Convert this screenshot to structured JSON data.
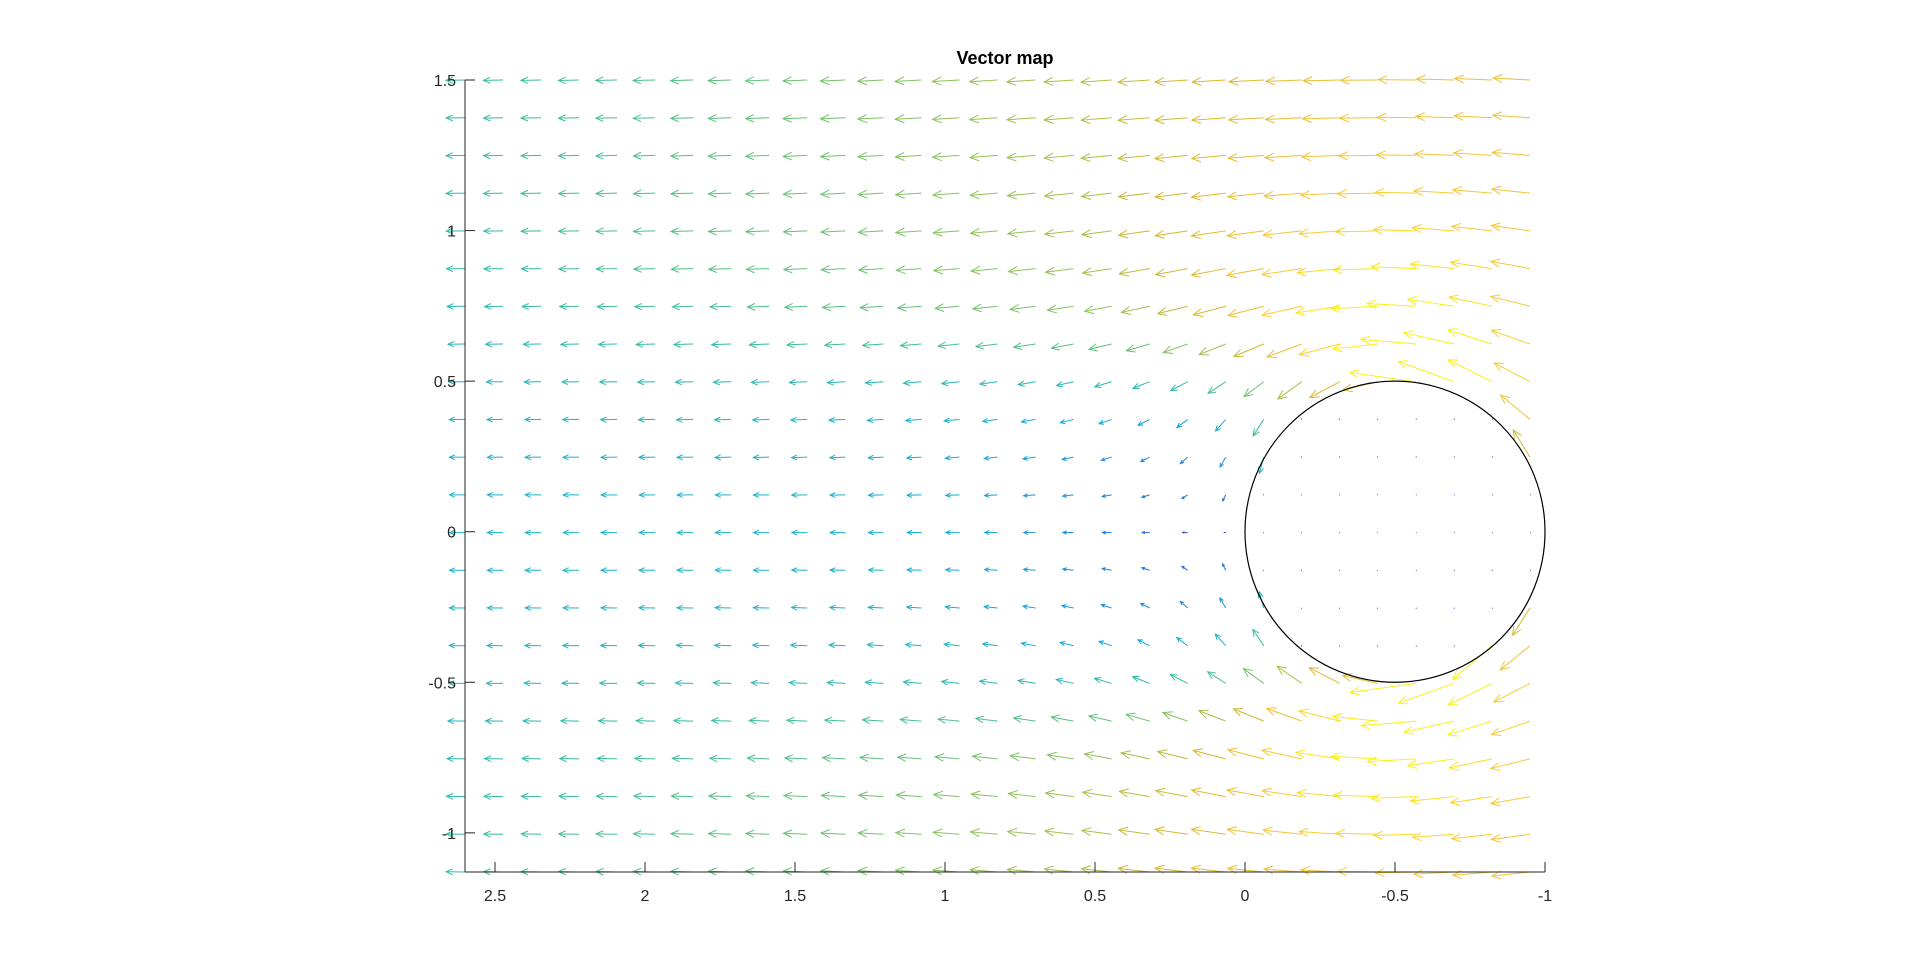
{
  "chart_data": {
    "type": "quiver",
    "title": "Vector map",
    "xlabel": "",
    "ylabel": "",
    "x_axis_reversed": true,
    "xlim": [
      2.6,
      -1.0
    ],
    "ylim": [
      -1.13,
      1.5
    ],
    "x_ticks": [
      2.5,
      2,
      1.5,
      1,
      0.5,
      0,
      -0.5,
      -1
    ],
    "x_tick_labels": [
      "2.5",
      "2",
      "1.5",
      "1",
      "0.5",
      "0",
      "-0.5",
      "-1"
    ],
    "y_ticks": [
      1.5,
      1,
      0.5,
      0,
      -0.5,
      -1
    ],
    "y_tick_labels": [
      "1.5",
      "1",
      "0.5",
      "0",
      "-0.5",
      "-1"
    ],
    "grid": false,
    "legend": "none",
    "colormap": "parula",
    "colormap_stops": [
      "#3e26a8",
      "#1f77e6",
      "#14afd2",
      "#3fbe96",
      "#8cc35a",
      "#d9b82e",
      "#f7c63a",
      "#f9f115"
    ],
    "circle": {
      "center": [
        -0.5,
        0.0
      ],
      "radius": 0.5,
      "color": "#000000"
    },
    "field": {
      "description_of_flow": "uniform leftward stream (toward larger x) around a circular obstacle; slow wake region downstream near y=0",
      "x_range": [
        -0.95,
        2.6
      ],
      "y_range": [
        -1.13,
        1.5
      ],
      "columns": 29,
      "rows": 22
    }
  }
}
